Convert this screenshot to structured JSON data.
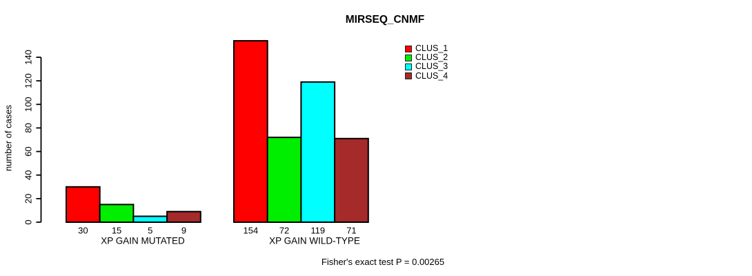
{
  "chart_data": {
    "type": "bar",
    "title": "MIRSEQ_CNMF",
    "ylabel": "number of cases",
    "xlabel": "",
    "ylim": [
      0,
      140
    ],
    "yticks": [
      0,
      20,
      40,
      60,
      80,
      100,
      120,
      140
    ],
    "grid": false,
    "legend_position": "top-right",
    "categories": [
      "XP GAIN MUTATED",
      "XP GAIN WILD-TYPE"
    ],
    "series": [
      {
        "name": "CLUS_1",
        "color": "#FF0000",
        "values": [
          30,
          154
        ]
      },
      {
        "name": "CLUS_2",
        "color": "#00EE00",
        "values": [
          15,
          72
        ]
      },
      {
        "name": "CLUS_3",
        "color": "#00FFFF",
        "values": [
          5,
          119
        ]
      },
      {
        "name": "CLUS_4",
        "color": "#A52A2A",
        "values": [
          9,
          71
        ]
      }
    ],
    "bar_value_labels_shown": true,
    "footnote": "Fisher's exact test P = 0.00265"
  }
}
